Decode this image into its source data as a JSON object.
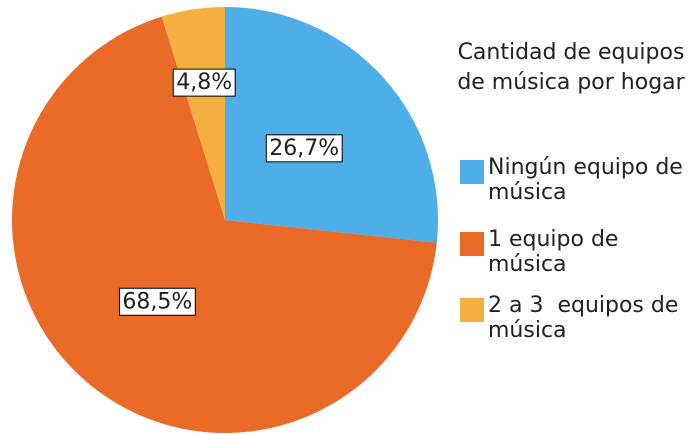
{
  "chart_data": {
    "type": "pie",
    "legend_title": "Cantidad de equipos de música por hogar",
    "categories": [
      "Ningún equipo de música",
      "1 equipo de música",
      "2 a 3  equipos de música"
    ],
    "values": [
      26.7,
      68.5,
      4.8
    ],
    "value_labels": [
      "26,7%",
      "68,5%",
      "4,8%"
    ],
    "colors": [
      "#4daee8",
      "#ea6b28",
      "#f5b041"
    ],
    "legend": "right"
  }
}
